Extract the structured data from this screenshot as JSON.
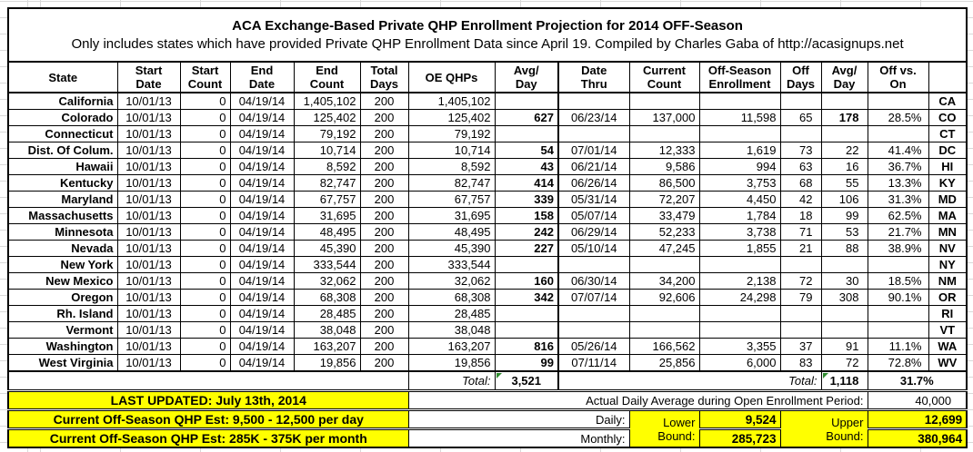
{
  "title": "ACA Exchange-Based Private QHP Enrollment Projection for 2014 OFF-Season",
  "subtitle": "Only includes states which have provided Private QHP Enrollment Data since April 19. Compiled by Charles Gaba of http://acasignups.net",
  "colors": {
    "highlight": "#ffff00",
    "flag_green": "#2e8b2e"
  },
  "columns": [
    {
      "key": "state",
      "label": "State"
    },
    {
      "key": "start_date",
      "label": "Start\nDate"
    },
    {
      "key": "start_count",
      "label": "Start\nCount"
    },
    {
      "key": "end_date",
      "label": "End\nDate"
    },
    {
      "key": "end_count",
      "label": "End\nCount"
    },
    {
      "key": "total_days",
      "label": "Total\nDays"
    },
    {
      "key": "oe_qhps",
      "label": "OE QHPs"
    },
    {
      "key": "oe_avg_day",
      "label": "Avg/\nDay"
    },
    {
      "key": "date_thru",
      "label": "Date\nThru"
    },
    {
      "key": "current_count",
      "label": "Current\nCount"
    },
    {
      "key": "off_season_enrollment",
      "label": "Off-Season\nEnrollment"
    },
    {
      "key": "off_days",
      "label": "Off\nDays"
    },
    {
      "key": "off_avg_day",
      "label": "Avg/\nDay"
    },
    {
      "key": "off_vs_on",
      "label": "Off vs.\nOn"
    },
    {
      "key": "abbr",
      "label": ""
    }
  ],
  "rows": [
    {
      "state": "California",
      "start_date": "10/01/13",
      "start_count": "0",
      "end_date": "04/19/14",
      "end_count": "1,405,102",
      "total_days": "200",
      "oe_qhps": "1,405,102",
      "oe_avg_day": "",
      "date_thru": "",
      "current_count": "",
      "off_season_enrollment": "",
      "off_days": "",
      "off_avg_day": "",
      "off_vs_on": "",
      "abbr": "CA"
    },
    {
      "state": "Colorado",
      "start_date": "10/01/13",
      "start_count": "0",
      "end_date": "04/19/14",
      "end_count": "125,402",
      "total_days": "200",
      "oe_qhps": "125,402",
      "oe_avg_day": "627",
      "date_thru": "06/23/14",
      "current_count": "137,000",
      "off_season_enrollment": "11,598",
      "off_days": "65",
      "off_avg_day": "178",
      "off_vs_on": "28.5%",
      "abbr": "CO",
      "off_avg_bold": true
    },
    {
      "state": "Connecticut",
      "start_date": "10/01/13",
      "start_count": "0",
      "end_date": "04/19/14",
      "end_count": "79,192",
      "total_days": "200",
      "oe_qhps": "79,192",
      "oe_avg_day": "",
      "date_thru": "",
      "current_count": "",
      "off_season_enrollment": "",
      "off_days": "",
      "off_avg_day": "",
      "off_vs_on": "",
      "abbr": "CT"
    },
    {
      "state": "Dist. Of Colum.",
      "start_date": "10/01/13",
      "start_count": "0",
      "end_date": "04/19/14",
      "end_count": "10,714",
      "total_days": "200",
      "oe_qhps": "10,714",
      "oe_avg_day": "54",
      "date_thru": "07/01/14",
      "current_count": "12,333",
      "off_season_enrollment": "1,619",
      "off_days": "73",
      "off_avg_day": "22",
      "off_vs_on": "41.4%",
      "abbr": "DC"
    },
    {
      "state": "Hawaii",
      "start_date": "10/01/13",
      "start_count": "0",
      "end_date": "04/19/14",
      "end_count": "8,592",
      "total_days": "200",
      "oe_qhps": "8,592",
      "oe_avg_day": "43",
      "date_thru": "06/21/14",
      "current_count": "9,586",
      "off_season_enrollment": "994",
      "off_days": "63",
      "off_avg_day": "16",
      "off_vs_on": "36.7%",
      "abbr": "HI"
    },
    {
      "state": "Kentucky",
      "start_date": "10/01/13",
      "start_count": "0",
      "end_date": "04/19/14",
      "end_count": "82,747",
      "total_days": "200",
      "oe_qhps": "82,747",
      "oe_avg_day": "414",
      "date_thru": "06/26/14",
      "current_count": "86,500",
      "off_season_enrollment": "3,753",
      "off_days": "68",
      "off_avg_day": "55",
      "off_vs_on": "13.3%",
      "abbr": "KY"
    },
    {
      "state": "Maryland",
      "start_date": "10/01/13",
      "start_count": "0",
      "end_date": "04/19/14",
      "end_count": "67,757",
      "total_days": "200",
      "oe_qhps": "67,757",
      "oe_avg_day": "339",
      "date_thru": "05/31/14",
      "current_count": "72,207",
      "off_season_enrollment": "4,450",
      "off_days": "42",
      "off_avg_day": "106",
      "off_vs_on": "31.3%",
      "abbr": "MD"
    },
    {
      "state": "Massachusetts",
      "start_date": "10/01/13",
      "start_count": "0",
      "end_date": "04/19/14",
      "end_count": "31,695",
      "total_days": "200",
      "oe_qhps": "31,695",
      "oe_avg_day": "158",
      "date_thru": "05/07/14",
      "current_count": "33,479",
      "off_season_enrollment": "1,784",
      "off_days": "18",
      "off_avg_day": "99",
      "off_vs_on": "62.5%",
      "abbr": "MA"
    },
    {
      "state": "Minnesota",
      "start_date": "10/01/13",
      "start_count": "0",
      "end_date": "04/19/14",
      "end_count": "48,495",
      "total_days": "200",
      "oe_qhps": "48,495",
      "oe_avg_day": "242",
      "date_thru": "06/29/14",
      "current_count": "52,233",
      "off_season_enrollment": "3,738",
      "off_days": "71",
      "off_avg_day": "53",
      "off_vs_on": "21.7%",
      "abbr": "MN"
    },
    {
      "state": "Nevada",
      "start_date": "10/01/13",
      "start_count": "0",
      "end_date": "04/19/14",
      "end_count": "45,390",
      "total_days": "200",
      "oe_qhps": "45,390",
      "oe_avg_day": "227",
      "date_thru": "05/10/14",
      "current_count": "47,245",
      "off_season_enrollment": "1,855",
      "off_days": "21",
      "off_avg_day": "88",
      "off_vs_on": "38.9%",
      "abbr": "NV"
    },
    {
      "state": "New York",
      "start_date": "10/01/13",
      "start_count": "0",
      "end_date": "04/19/14",
      "end_count": "333,544",
      "total_days": "200",
      "oe_qhps": "333,544",
      "oe_avg_day": "",
      "date_thru": "",
      "current_count": "",
      "off_season_enrollment": "",
      "off_days": "",
      "off_avg_day": "",
      "off_vs_on": "",
      "abbr": "NY"
    },
    {
      "state": "New Mexico",
      "start_date": "10/01/13",
      "start_count": "0",
      "end_date": "04/19/14",
      "end_count": "32,062",
      "total_days": "200",
      "oe_qhps": "32,062",
      "oe_avg_day": "160",
      "date_thru": "06/30/14",
      "current_count": "34,200",
      "off_season_enrollment": "2,138",
      "off_days": "72",
      "off_avg_day": "30",
      "off_vs_on": "18.5%",
      "abbr": "NM"
    },
    {
      "state": "Oregon",
      "start_date": "10/01/13",
      "start_count": "0",
      "end_date": "04/19/14",
      "end_count": "68,308",
      "total_days": "200",
      "oe_qhps": "68,308",
      "oe_avg_day": "342",
      "date_thru": "07/07/14",
      "current_count": "92,606",
      "off_season_enrollment": "24,298",
      "off_days": "79",
      "off_avg_day": "308",
      "off_vs_on": "90.1%",
      "abbr": "OR"
    },
    {
      "state": "Rh. Island",
      "start_date": "10/01/13",
      "start_count": "0",
      "end_date": "04/19/14",
      "end_count": "28,485",
      "total_days": "200",
      "oe_qhps": "28,485",
      "oe_avg_day": "",
      "date_thru": "",
      "current_count": "",
      "off_season_enrollment": "",
      "off_days": "",
      "off_avg_day": "",
      "off_vs_on": "",
      "abbr": "RI"
    },
    {
      "state": "Vermont",
      "start_date": "10/01/13",
      "start_count": "0",
      "end_date": "04/19/14",
      "end_count": "38,048",
      "total_days": "200",
      "oe_qhps": "38,048",
      "oe_avg_day": "",
      "date_thru": "",
      "current_count": "",
      "off_season_enrollment": "",
      "off_days": "",
      "off_avg_day": "",
      "off_vs_on": "",
      "abbr": "VT"
    },
    {
      "state": "Washington",
      "start_date": "10/01/13",
      "start_count": "0",
      "end_date": "04/19/14",
      "end_count": "163,207",
      "total_days": "200",
      "oe_qhps": "163,207",
      "oe_avg_day": "816",
      "date_thru": "05/26/14",
      "current_count": "166,562",
      "off_season_enrollment": "3,355",
      "off_days": "37",
      "off_avg_day": "91",
      "off_vs_on": "11.1%",
      "abbr": "WA"
    },
    {
      "state": "West Virginia",
      "start_date": "10/01/13",
      "start_count": "0",
      "end_date": "04/19/14",
      "end_count": "19,856",
      "total_days": "200",
      "oe_qhps": "19,856",
      "oe_avg_day": "99",
      "date_thru": "07/11/14",
      "current_count": "25,856",
      "off_season_enrollment": "6,000",
      "off_days": "83",
      "off_avg_day": "72",
      "off_vs_on": "72.8%",
      "abbr": "WV"
    }
  ],
  "totals": {
    "oe_label": "Total:",
    "oe_avg": "3,521",
    "off_label": "Total:",
    "off_avg": "1,118",
    "off_vs_on": "31.7%"
  },
  "footer": {
    "last_updated": "LAST UPDATED: July 13th, 2014",
    "actual_daily_label": "Actual Daily Average during Open Enrollment Period:",
    "actual_daily_value": "40,000",
    "daily_est_label": "Current Off-Season QHP Est: 9,500 - 12,500 per day",
    "monthly_est_label": "Current Off-Season QHP Est: 285K - 375K per month",
    "daily_label": "Daily:",
    "monthly_label": "Monthly:",
    "lower_bound_label": "Lower\nBound:",
    "upper_bound_label": "Upper\nBound:",
    "daily_lower": "9,524",
    "daily_upper": "12,699",
    "monthly_lower": "285,723",
    "monthly_upper": "380,964"
  }
}
